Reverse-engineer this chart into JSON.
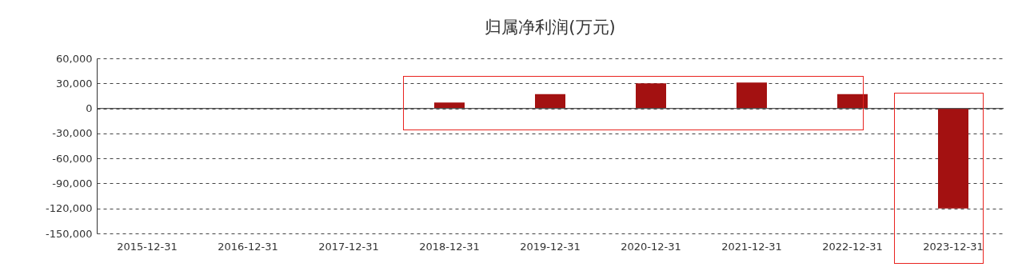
{
  "chart_data": {
    "type": "bar",
    "title": "归属净利润(万元)",
    "categories": [
      "2015-12-31",
      "2016-12-31",
      "2017-12-31",
      "2018-12-31",
      "2019-12-31",
      "2020-12-31",
      "2021-12-31",
      "2022-12-31",
      "2023-12-31"
    ],
    "values": [
      0,
      0,
      0,
      7000,
      17000,
      30000,
      31000,
      17000,
      -120000
    ],
    "color": "#a31111",
    "ylim": [
      -150000,
      60000
    ],
    "yticks": [
      {
        "value": -150000,
        "label": "-150,000"
      },
      {
        "value": -120000,
        "label": "-120,000"
      },
      {
        "value": -90000,
        "label": "-90,000"
      },
      {
        "value": -60000,
        "label": "-60,000"
      },
      {
        "value": -30000,
        "label": "-30,000"
      },
      {
        "value": 0,
        "label": "0"
      },
      {
        "value": 30000,
        "label": "30,000"
      },
      {
        "value": 60000,
        "label": "60,000"
      }
    ],
    "grid": "y"
  }
}
